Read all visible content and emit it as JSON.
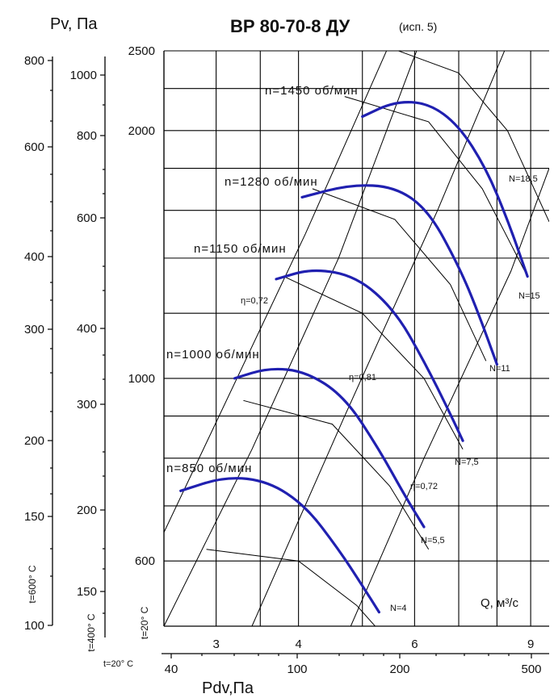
{
  "chart_data": {
    "type": "line",
    "title": "ВР 80-70-8 ДУ",
    "subtitle": "(исп. 5)",
    "left_axis_label": "Pv, Па",
    "bottom_axis_label": "Pdv,Па",
    "q_axis_label": "Q, м³/с",
    "q_ticks": [
      "3",
      "4",
      "6",
      "9"
    ],
    "p_ticks": [
      "2500",
      "2000",
      "1000",
      "600"
    ],
    "pv_600_ticks": [
      "800",
      "600",
      "400",
      "300",
      "200",
      "150",
      "100"
    ],
    "pv_400_ticks": [
      "1000",
      "800",
      "600",
      "400",
      "300",
      "200",
      "150"
    ],
    "temp_600_label": "t=600° C",
    "temp_400_label": "t=400° C",
    "temp_20_label": "t=20° C",
    "pdv_temp_label": "t=20° C",
    "pdv_ticks": [
      "40",
      "100",
      "200",
      "500"
    ],
    "axis_ranges": {
      "q_min": 2.5,
      "q_max": 9.6,
      "p_min": 500,
      "p_max": 2500,
      "q_scale": "log",
      "p_scale": "log"
    },
    "grid": true,
    "series": [
      {
        "name": "n=1450 об/мин",
        "x": [
          5.0,
          5.6,
          6.3,
          7.0,
          7.7,
          8.3,
          8.9
        ],
        "y": [
          2080,
          2170,
          2160,
          2030,
          1800,
          1560,
          1330
        ]
      },
      {
        "name": "n=1280 об/мин",
        "x": [
          4.05,
          4.8,
          5.6,
          6.3,
          7.0,
          7.5,
          8.0
        ],
        "y": [
          1660,
          1720,
          1710,
          1600,
          1370,
          1200,
          1040
        ]
      },
      {
        "name": "n=1150 об/мин",
        "x": [
          3.7,
          4.2,
          4.9,
          5.6,
          6.2,
          6.8,
          7.1
        ],
        "y": [
          1320,
          1360,
          1330,
          1210,
          1050,
          905,
          840
        ]
      },
      {
        "name": "n=1000 об/мин",
        "x": [
          3.2,
          3.6,
          4.1,
          4.7,
          5.3,
          5.8,
          6.2
        ],
        "y": [
          1000,
          1030,
          1020,
          950,
          820,
          720,
          660
        ]
      },
      {
        "name": "n=850 об/мин",
        "x": [
          2.65,
          3.1,
          3.6,
          4.1,
          4.6,
          5.0,
          5.3
        ],
        "y": [
          730,
          760,
          750,
          700,
          620,
          560,
          520
        ]
      }
    ],
    "power_labels": [
      "N=18,5",
      "N=15",
      "N=11",
      "N=7,5",
      "N=5,5",
      "N=4"
    ],
    "efficiency_labels": [
      "η=0,72",
      "η=0,81",
      "η=0,72"
    ]
  }
}
